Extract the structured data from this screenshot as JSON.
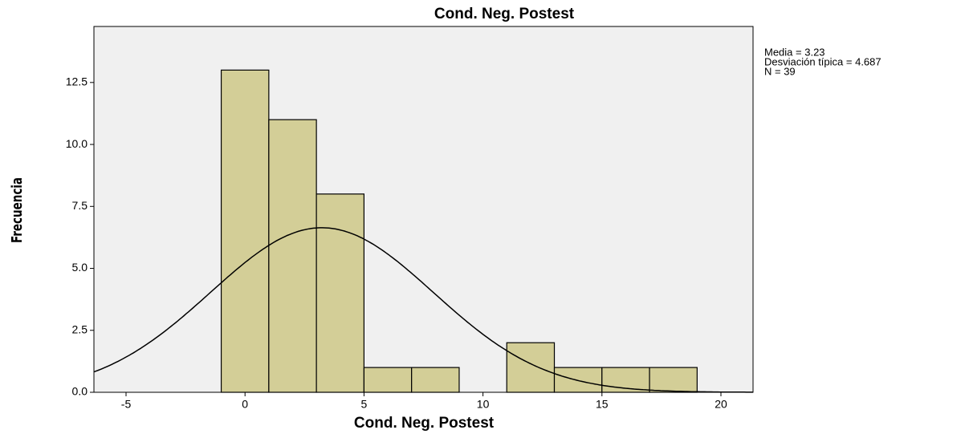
{
  "chart_data": {
    "type": "histogram",
    "title": "Cond. Neg. Postest",
    "x_label": "Cond. Neg. Postest",
    "y_label": "Frecuencia",
    "bins": [
      -1,
      1,
      3,
      5,
      7,
      9,
      11,
      13,
      15,
      17,
      19
    ],
    "counts": [
      13,
      11,
      8,
      1,
      1,
      0,
      2,
      1,
      1,
      1
    ],
    "color": "#d3ce97",
    "background": "#f0f0f0",
    "xlim": [
      -6.35,
      21.35
    ],
    "xticks": [
      -5,
      0,
      5,
      10,
      15,
      20
    ],
    "ylim": [
      0,
      14.76
    ],
    "yticks": [
      {
        "value": 0,
        "label": "0.0"
      },
      2.5,
      {
        "value": 5,
        "label": "5.0"
      },
      7.5,
      {
        "value": 10,
        "label": "10.0"
      },
      12.5
    ],
    "stats": [
      {
        "value": 3.23,
        "label": "Media = 3.23"
      },
      {
        "value": 4.687,
        "label": "Desviación típica = 4.687"
      },
      {
        "value": 39,
        "label": "N = 39"
      }
    ]
  }
}
